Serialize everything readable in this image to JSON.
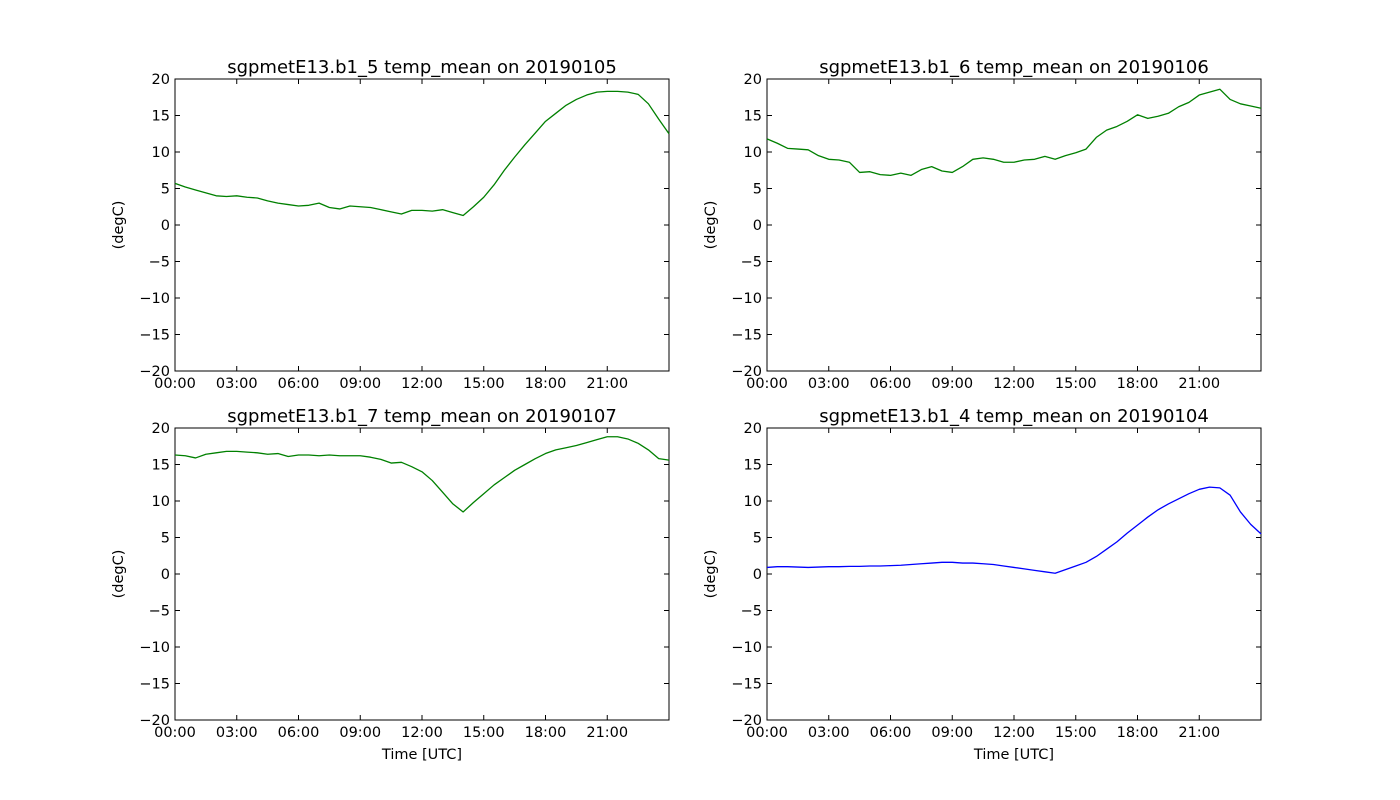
{
  "chart_data": [
    {
      "type": "line",
      "title": "sgpmetE13.b1_5 temp_mean on 20190105",
      "xlabel": "",
      "ylabel": "(degC)",
      "ylim": [
        -20,
        20
      ],
      "xlim_hours": [
        0,
        24
      ],
      "yticks": [
        -20,
        -15,
        -10,
        -5,
        0,
        5,
        10,
        15,
        20
      ],
      "xtick_labels": [
        "00:00",
        "03:00",
        "06:00",
        "09:00",
        "12:00",
        "15:00",
        "18:00",
        "21:00"
      ],
      "grid": false,
      "series": [
        {
          "color": "#008000",
          "x": [
            0,
            0.5,
            1,
            1.5,
            2,
            2.5,
            3,
            3.5,
            4,
            4.5,
            5,
            5.5,
            6,
            6.5,
            7,
            7.5,
            8,
            8.5,
            9,
            9.5,
            10,
            10.5,
            11,
            11.5,
            12,
            12.5,
            13,
            13.5,
            14,
            14.5,
            15,
            15.5,
            16,
            16.5,
            17,
            17.5,
            18,
            18.5,
            19,
            19.5,
            20,
            20.5,
            21,
            21.5,
            22,
            22.5,
            23,
            23.5,
            24
          ],
          "y": [
            5.7,
            5.2,
            4.8,
            4.4,
            4.0,
            3.9,
            4.0,
            3.8,
            3.7,
            3.3,
            3.0,
            2.8,
            2.6,
            2.7,
            3.0,
            2.4,
            2.2,
            2.6,
            2.5,
            2.4,
            2.1,
            1.8,
            1.5,
            2.0,
            2.0,
            1.9,
            2.1,
            1.7,
            1.3,
            2.5,
            3.8,
            5.5,
            7.5,
            9.3,
            11.0,
            12.6,
            14.2,
            15.3,
            16.4,
            17.2,
            17.8,
            18.2,
            18.3,
            18.3,
            18.2,
            17.9,
            16.6,
            14.5,
            12.5
          ]
        }
      ]
    },
    {
      "type": "line",
      "title": "sgpmetE13.b1_6 temp_mean on 20190106",
      "xlabel": "",
      "ylabel": "(degC)",
      "ylim": [
        -20,
        20
      ],
      "xlim_hours": [
        0,
        24
      ],
      "yticks": [
        -20,
        -15,
        -10,
        -5,
        0,
        5,
        10,
        15,
        20
      ],
      "xtick_labels": [
        "00:00",
        "03:00",
        "06:00",
        "09:00",
        "12:00",
        "15:00",
        "18:00",
        "21:00"
      ],
      "grid": false,
      "series": [
        {
          "color": "#008000",
          "x": [
            0,
            0.5,
            1,
            1.5,
            2,
            2.5,
            3,
            3.5,
            4,
            4.5,
            5,
            5.5,
            6,
            6.5,
            7,
            7.5,
            8,
            8.5,
            9,
            9.5,
            10,
            10.5,
            11,
            11.5,
            12,
            12.5,
            13,
            13.5,
            14,
            14.5,
            15,
            15.5,
            16,
            16.5,
            17,
            17.5,
            18,
            18.5,
            19,
            19.5,
            20,
            20.5,
            21,
            21.5,
            22,
            22.5,
            23,
            23.5,
            24
          ],
          "y": [
            11.8,
            11.2,
            10.5,
            10.4,
            10.3,
            9.5,
            9.0,
            8.9,
            8.6,
            7.2,
            7.3,
            6.9,
            6.8,
            7.1,
            6.8,
            7.6,
            8.0,
            7.4,
            7.2,
            8.0,
            9.0,
            9.2,
            9.0,
            8.6,
            8.6,
            8.9,
            9.0,
            9.4,
            9.0,
            9.5,
            9.9,
            10.4,
            12.0,
            13.0,
            13.5,
            14.2,
            15.1,
            14.6,
            14.9,
            15.3,
            16.2,
            16.8,
            17.8,
            18.2,
            18.6,
            17.2,
            16.6,
            16.3,
            16.0
          ]
        }
      ]
    },
    {
      "type": "line",
      "title": "sgpmetE13.b1_7 temp_mean on 20190107",
      "xlabel": "Time [UTC]",
      "ylabel": "(degC)",
      "ylim": [
        -20,
        20
      ],
      "xlim_hours": [
        0,
        24
      ],
      "yticks": [
        -20,
        -15,
        -10,
        -5,
        0,
        5,
        10,
        15,
        20
      ],
      "xtick_labels": [
        "00:00",
        "03:00",
        "06:00",
        "09:00",
        "12:00",
        "15:00",
        "18:00",
        "21:00"
      ],
      "grid": false,
      "series": [
        {
          "color": "#008000",
          "x": [
            0,
            0.5,
            1,
            1.5,
            2,
            2.5,
            3,
            3.5,
            4,
            4.5,
            5,
            5.5,
            6,
            6.5,
            7,
            7.5,
            8,
            8.5,
            9,
            9.5,
            10,
            10.5,
            11,
            11.5,
            12,
            12.5,
            13,
            13.5,
            14,
            14.5,
            15,
            15.5,
            16,
            16.5,
            17,
            17.5,
            18,
            18.5,
            19,
            19.5,
            20,
            20.5,
            21,
            21.5,
            22,
            22.5,
            23,
            23.5,
            24
          ],
          "y": [
            16.3,
            16.2,
            15.9,
            16.4,
            16.6,
            16.8,
            16.8,
            16.7,
            16.6,
            16.4,
            16.5,
            16.1,
            16.3,
            16.3,
            16.2,
            16.3,
            16.2,
            16.2,
            16.2,
            16.0,
            15.7,
            15.2,
            15.3,
            14.7,
            14.0,
            12.8,
            11.2,
            9.6,
            8.5,
            9.8,
            11.0,
            12.2,
            13.2,
            14.2,
            15.0,
            15.8,
            16.5,
            17.0,
            17.3,
            17.6,
            18.0,
            18.4,
            18.8,
            18.8,
            18.5,
            17.9,
            17.0,
            15.8,
            15.6
          ]
        }
      ]
    },
    {
      "type": "line",
      "title": "sgpmetE13.b1_4 temp_mean on 20190104",
      "xlabel": "Time [UTC]",
      "ylabel": "(degC)",
      "ylim": [
        -20,
        20
      ],
      "xlim_hours": [
        0,
        24
      ],
      "yticks": [
        -20,
        -15,
        -10,
        -5,
        0,
        5,
        10,
        15,
        20
      ],
      "xtick_labels": [
        "00:00",
        "03:00",
        "06:00",
        "09:00",
        "12:00",
        "15:00",
        "18:00",
        "21:00"
      ],
      "grid": false,
      "series": [
        {
          "color": "#0000ff",
          "x": [
            0,
            0.5,
            1,
            1.5,
            2,
            2.5,
            3,
            3.5,
            4,
            4.5,
            5,
            5.5,
            6,
            6.5,
            7,
            7.5,
            8,
            8.5,
            9,
            9.5,
            10,
            10.5,
            11,
            11.5,
            12,
            12.5,
            13,
            13.5,
            14,
            14.5,
            15,
            15.5,
            16,
            16.5,
            17,
            17.5,
            18,
            18.5,
            19,
            19.5,
            20,
            20.5,
            21,
            21.5,
            22,
            22.5,
            23,
            23.5,
            24
          ],
          "y": [
            0.9,
            1.0,
            1.0,
            0.95,
            0.9,
            0.95,
            1.0,
            1.0,
            1.05,
            1.05,
            1.1,
            1.1,
            1.15,
            1.2,
            1.3,
            1.4,
            1.5,
            1.6,
            1.6,
            1.5,
            1.5,
            1.4,
            1.3,
            1.1,
            0.9,
            0.7,
            0.5,
            0.3,
            0.1,
            0.6,
            1.1,
            1.6,
            2.4,
            3.4,
            4.4,
            5.6,
            6.7,
            7.8,
            8.8,
            9.6,
            10.3,
            11.0,
            11.6,
            11.9,
            11.8,
            10.8,
            8.5,
            6.8,
            5.5
          ]
        }
      ]
    }
  ]
}
